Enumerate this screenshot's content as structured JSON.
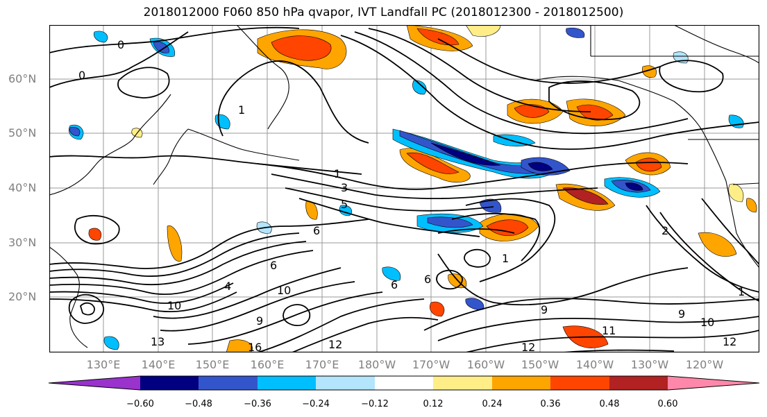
{
  "title": "2018012000 F060 850 hPa qvapor, IVT Landfall PC (2018012300 - 2018012500)",
  "lat_labels": [
    "60°N",
    "50°N",
    "40°N",
    "30°N",
    "20°N"
  ],
  "lon_labels": [
    "130°E",
    "140°E",
    "150°E",
    "160°E",
    "170°E",
    "180°W",
    "170°W",
    "160°W",
    "150°W",
    "140°W",
    "130°W",
    "120°W"
  ],
  "contour_labels": [
    "0",
    "0",
    "1",
    "1",
    "3",
    "5",
    "2",
    "1",
    "1",
    "4",
    "6",
    "6",
    "10",
    "10",
    "9",
    "9",
    "9",
    "10",
    "11",
    "12",
    "12",
    "12",
    "13",
    "16",
    "6",
    "6"
  ],
  "colorbar": {
    "colors": [
      "#9933cc",
      "#000080",
      "#3355cc",
      "#00bfff",
      "#b3e5fc",
      "#ffffff",
      "#ffee88",
      "#ffa500",
      "#ff4500",
      "#b22222",
      "#ff88aa"
    ],
    "tick_labels": [
      "−0.60",
      "−0.48",
      "−0.36",
      "−0.24",
      "−0.12",
      "0.12",
      "0.24",
      "0.36",
      "0.48",
      "0.60"
    ]
  }
}
